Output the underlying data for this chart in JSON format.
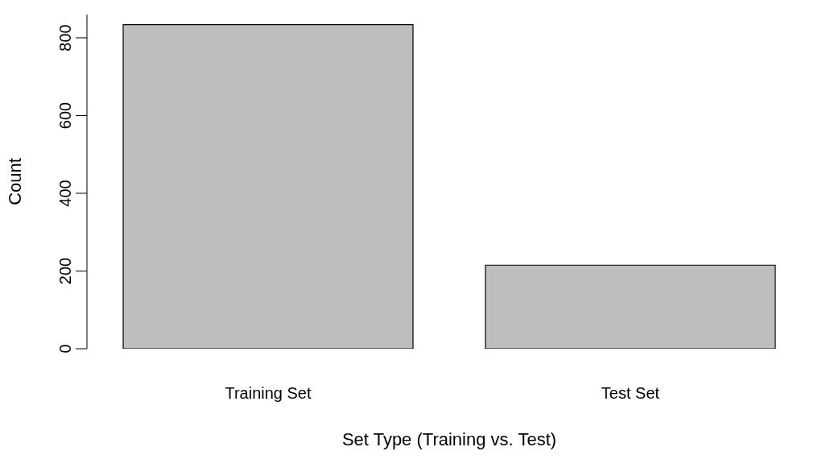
{
  "chart_data": {
    "type": "bar",
    "xlabel": "Set Type (Training vs. Test)",
    "ylabel": "Count",
    "categories": [
      "Training Set",
      "Test Set"
    ],
    "values": [
      834,
      215
    ],
    "color": "#bebebe",
    "ylim": [
      0,
      860
    ],
    "yticks": [
      0,
      200,
      400,
      600,
      800
    ],
    "grid": false
  }
}
